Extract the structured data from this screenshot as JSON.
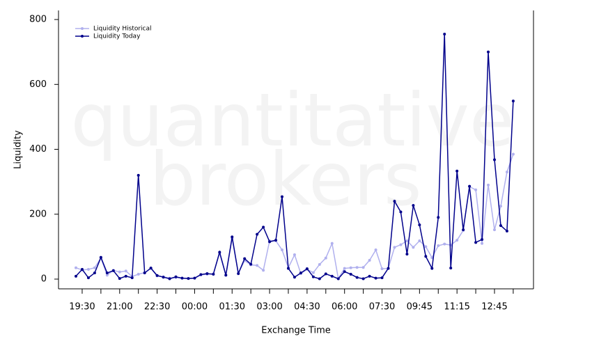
{
  "chart_data": {
    "type": "line",
    "x_label": "Exchange Time",
    "y_label": "Liquidity",
    "watermark": [
      "quantitative",
      "brokers"
    ],
    "categories": [
      null,
      "19:30",
      null,
      null,
      null,
      null,
      null,
      "21:00",
      null,
      null,
      null,
      null,
      null,
      "22:30",
      null,
      null,
      null,
      null,
      null,
      "00:00",
      null,
      null,
      null,
      null,
      null,
      "01:30",
      null,
      null,
      null,
      null,
      null,
      "03:00",
      null,
      null,
      null,
      null,
      null,
      "04:30",
      null,
      null,
      null,
      null,
      null,
      "06:00",
      null,
      null,
      null,
      null,
      null,
      "07:30",
      null,
      null,
      null,
      null,
      null,
      "09:45",
      null,
      null,
      null,
      null,
      null,
      "11:15",
      null,
      null,
      null,
      null,
      null,
      "12:45",
      null,
      null,
      null
    ],
    "series": [
      {
        "name": "Liquidity Historical",
        "color": "#b0b0ee",
        "values": [
          35,
          28,
          30,
          35,
          65,
          12,
          27,
          22,
          25,
          8,
          15,
          20,
          33,
          10,
          7,
          3,
          5,
          3,
          2,
          3,
          13,
          15,
          16,
          80,
          12,
          125,
          18,
          57,
          44,
          42,
          27,
          118,
          118,
          90,
          35,
          75,
          17,
          30,
          20,
          45,
          65,
          110,
          2,
          33,
          35,
          36,
          36,
          58,
          90,
          32,
          33,
          98,
          106,
          118,
          98,
          118,
          100,
          66,
          103,
          108,
          105,
          120,
          150,
          285,
          275,
          110,
          290,
          152,
          225,
          330,
          385
        ]
      },
      {
        "name": "Liquidity Today",
        "color": "#00008b",
        "values": [
          9,
          30,
          4,
          19,
          67,
          19,
          26,
          2,
          9,
          4,
          320,
          19,
          34,
          11,
          6,
          1,
          7,
          3,
          2,
          3,
          14,
          17,
          15,
          83,
          12,
          130,
          17,
          63,
          46,
          138,
          160,
          115,
          120,
          254,
          33,
          6,
          19,
          32,
          7,
          1,
          16,
          9,
          1,
          23,
          15,
          5,
          1,
          9,
          3,
          4,
          33,
          240,
          207,
          77,
          227,
          167,
          70,
          33,
          190,
          755,
          34,
          333,
          152,
          286,
          113,
          122,
          700,
          368,
          165,
          148,
          549
        ]
      }
    ],
    "ylim": [
      -30,
      828
    ],
    "yticks": [
      0,
      200,
      400,
      600,
      800
    ],
    "legend": "top-left"
  }
}
